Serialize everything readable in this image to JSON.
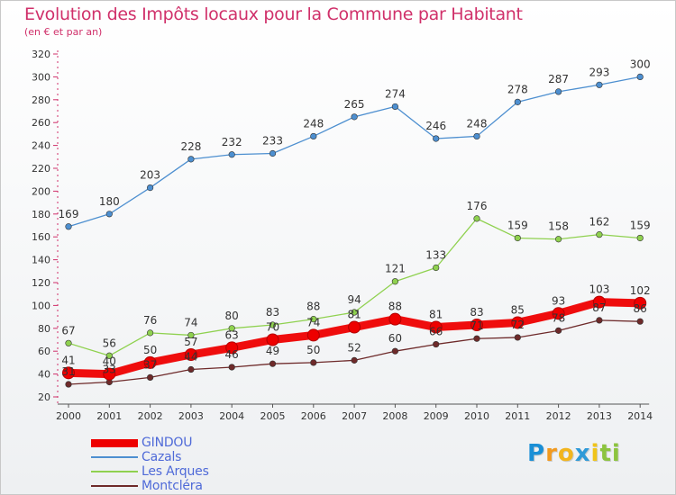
{
  "header": {
    "title": "Evolution des Impôts locaux pour la Commune par Habitant",
    "subtitle": "(en € et par an)"
  },
  "colors": {
    "title": "#d0306a",
    "axis": "#333333",
    "grid": "#d8d8d8"
  },
  "logo": {
    "letters": [
      "P",
      "r",
      "o",
      "x",
      "i",
      "t",
      "i"
    ],
    "letter_colors": [
      "#1a8fd6",
      "#f29a1e",
      "#f2b51e",
      "#2f9ad8",
      "#f0c419",
      "#8cc43e",
      "#8cc43e"
    ]
  },
  "chart_data": {
    "type": "line",
    "title": "Evolution des Impôts locaux pour la Commune par Habitant",
    "subtitle": "(en € et par an)",
    "x": [
      "2000",
      "2001",
      "2002",
      "2003",
      "2004",
      "2005",
      "2006",
      "2007",
      "2008",
      "2009",
      "2010",
      "2011",
      "2012",
      "2013",
      "2014"
    ],
    "xlabel": "",
    "ylabel": "",
    "ylim": [
      20,
      320
    ],
    "yticks": [
      20,
      40,
      60,
      80,
      100,
      120,
      140,
      160,
      180,
      200,
      220,
      240,
      260,
      280,
      300,
      320
    ],
    "grid": false,
    "legend": "bottom-left",
    "series": [
      {
        "name": "GINDOU",
        "color": "#ee0000",
        "highlight": true,
        "values": [
          41,
          40,
          50,
          57,
          63,
          70,
          74,
          81,
          88,
          81,
          83,
          85,
          93,
          103,
          102
        ]
      },
      {
        "name": "Cazals",
        "color": "#4d8fd0",
        "highlight": false,
        "values": [
          169,
          180,
          203,
          228,
          232,
          233,
          248,
          265,
          274,
          246,
          248,
          278,
          287,
          293,
          300
        ]
      },
      {
        "name": "Les Arques",
        "color": "#8fd14f",
        "highlight": false,
        "values": [
          67,
          56,
          76,
          74,
          80,
          83,
          88,
          94,
          121,
          133,
          176,
          159,
          158,
          162,
          159
        ]
      },
      {
        "name": "Montcléra",
        "color": "#6e2a2a",
        "highlight": false,
        "values": [
          31,
          33,
          37,
          44,
          46,
          49,
          50,
          52,
          60,
          66,
          71,
          72,
          78,
          87,
          86
        ]
      }
    ]
  }
}
